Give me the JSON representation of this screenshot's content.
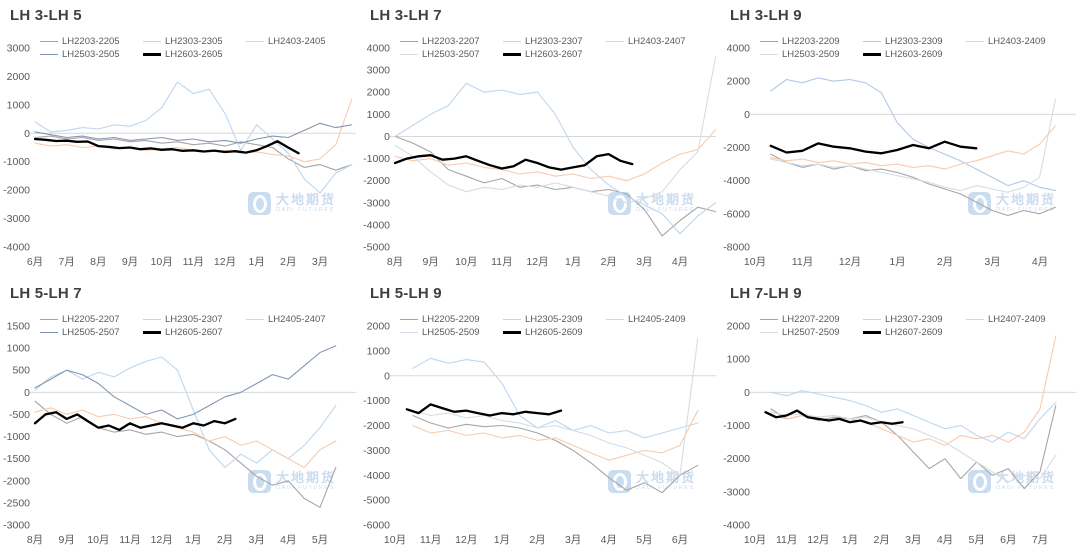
{
  "watermark": {
    "cn": "大地期货",
    "en": "DADI FUTURES"
  },
  "colors": {
    "gray22": "#a6a6a6",
    "blue23": "#bdd7ee",
    "peach24": "#f8cbad",
    "bluegray25": "#8497b0",
    "lightgray25": "#d6dce5",
    "black26": "#000000",
    "zeroline": "#d9d9d9"
  },
  "chart_data": [
    {
      "type": "line",
      "title": "LH 3-LH 5",
      "xlabel": "",
      "ylabel": "",
      "ylim": [
        -4000,
        3000
      ],
      "ystep": 1000,
      "grid": "zero-line-only",
      "legend_position": "top",
      "months": [
        "6月",
        "7月",
        "8月",
        "9月",
        "10月",
        "11月",
        "12月",
        "1月",
        "2月",
        "3月"
      ],
      "series": [
        {
          "name": "LH2203-2205",
          "color": "#a6a6a6",
          "width": 1.1,
          "start": 0,
          "step": 0.5,
          "values": [
            -150,
            -100,
            -200,
            -150,
            -250,
            -200,
            -300,
            -250,
            -350,
            -300,
            -400,
            -350,
            -450,
            -300,
            -400,
            -500,
            -900,
            -1200,
            -1100,
            -1300,
            -1100
          ]
        },
        {
          "name": "LH2303-2305",
          "color": "#bdd7ee",
          "width": 1.1,
          "start": 0,
          "step": 0.5,
          "values": [
            400,
            50,
            100,
            200,
            150,
            300,
            250,
            450,
            900,
            1800,
            1400,
            1550,
            700,
            -600,
            300,
            -200,
            -700,
            -1600,
            -2100,
            -1400,
            -1100
          ]
        },
        {
          "name": "LH2403-2405",
          "color": "#f8cbad",
          "width": 1.1,
          "start": 0,
          "step": 0.5,
          "values": [
            -350,
            -450,
            -400,
            -500,
            -450,
            -550,
            -500,
            -600,
            -550,
            -500,
            -600,
            -650,
            -600,
            -700,
            -650,
            -750,
            -800,
            -1000,
            -900,
            -400,
            1200
          ]
        },
        {
          "name": "LH2503-2505",
          "color": "#8497b0",
          "width": 1.1,
          "start": 0,
          "step": 0.5,
          "values": [
            50,
            -50,
            -150,
            -100,
            -200,
            -150,
            -250,
            -200,
            -150,
            -250,
            -200,
            -300,
            -250,
            -350,
            -200,
            -100,
            -150,
            100,
            350,
            200,
            300
          ]
        },
        {
          "name": "LH2603-2605",
          "color": "#000000",
          "width": 2.3,
          "start": 0,
          "step": 0.333,
          "values": [
            -200,
            -230,
            -270,
            -260,
            -300,
            -290,
            -450,
            -480,
            -520,
            -500,
            -560,
            -530,
            -580,
            -560,
            -620,
            -600,
            -640,
            -610,
            -660,
            -630,
            -680,
            -600,
            -450,
            -280,
            -500,
            -700
          ]
        }
      ]
    },
    {
      "type": "line",
      "title": "LH 3-LH 7",
      "xlabel": "",
      "ylabel": "",
      "ylim": [
        -5000,
        4000
      ],
      "ystep": 1000,
      "grid": "zero-line-only",
      "legend_position": "top",
      "months": [
        "8月",
        "9月",
        "10月",
        "11月",
        "12月",
        "1月",
        "2月",
        "3月",
        "4月"
      ],
      "series": [
        {
          "name": "LH2203-2207",
          "color": "#a6a6a6",
          "width": 1.1,
          "start": 0,
          "step": 0.5,
          "values": [
            0,
            -300,
            -700,
            -1500,
            -1800,
            -2100,
            -1900,
            -2300,
            -2200,
            -2400,
            -2300,
            -2500,
            -2400,
            -2600,
            -3300,
            -4500,
            -3800,
            -3200,
            -3400
          ]
        },
        {
          "name": "LH2303-2307",
          "color": "#bdd7ee",
          "width": 1.1,
          "start": 0,
          "step": 0.5,
          "values": [
            0,
            500,
            1000,
            1400,
            2400,
            2000,
            2100,
            1900,
            2000,
            1000,
            -500,
            -1500,
            -2200,
            -2700,
            -3100,
            -3500,
            -4400,
            -3600,
            -3000
          ]
        },
        {
          "name": "LH2403-2407",
          "color": "#f8cbad",
          "width": 1.1,
          "start": 0,
          "step": 0.5,
          "values": [
            -900,
            -1100,
            -1000,
            -1300,
            -1200,
            -1400,
            -1500,
            -1700,
            -1600,
            -1800,
            -1700,
            -1900,
            -1800,
            -2000,
            -1700,
            -1200,
            -800,
            -600,
            300
          ]
        },
        {
          "name": "LH2503-2507",
          "color": "#d6dce5",
          "width": 1.1,
          "start": 0,
          "step": 0.5,
          "values": [
            -400,
            -900,
            -1600,
            -2200,
            -2500,
            -2300,
            -2400,
            -2200,
            -2300,
            -2100,
            -2300,
            -2500,
            -2700,
            -3000,
            -2800,
            -2500,
            -1500,
            -700,
            3600
          ]
        },
        {
          "name": "LH2603-2607",
          "color": "#000000",
          "width": 2.3,
          "start": 0,
          "step": 0.333,
          "values": [
            -1200,
            -1000,
            -900,
            -850,
            -1050,
            -1000,
            -900,
            -1100,
            -1300,
            -1450,
            -1350,
            -1050,
            -1200,
            -1400,
            -1500,
            -1400,
            -1300,
            -900,
            -800,
            -1100,
            -1250
          ]
        }
      ]
    },
    {
      "type": "line",
      "title": "LH 3-LH 9",
      "xlabel": "",
      "ylabel": "",
      "ylim": [
        -8000,
        4000
      ],
      "ystep": 2000,
      "grid": "zero-line-only",
      "legend_position": "top",
      "months": [
        "10月",
        "11月",
        "12月",
        "1月",
        "2月",
        "3月",
        "4月"
      ],
      "series": [
        {
          "name": "LH2203-2209",
          "color": "#a6a6a6",
          "width": 1.1,
          "start": 0.33,
          "step": 0.333,
          "values": [
            -2400,
            -2900,
            -3200,
            -3000,
            -3300,
            -3100,
            -3400,
            -3300,
            -3500,
            -3800,
            -4200,
            -4500,
            -4800,
            -5300,
            -5800,
            -6100,
            -5800,
            -6000,
            -5600
          ]
        },
        {
          "name": "LH2303-2309",
          "color": "#b4c7e7",
          "width": 1.1,
          "start": 0.33,
          "step": 0.333,
          "values": [
            1400,
            2100,
            1900,
            2200,
            2000,
            2100,
            1900,
            1300,
            -500,
            -1500,
            -2000,
            -2400,
            -2800,
            -3300,
            -3800,
            -4300,
            -4000,
            -4400,
            -4600
          ]
        },
        {
          "name": "LH2403-2409",
          "color": "#f8cbad",
          "width": 1.1,
          "start": 0.33,
          "step": 0.333,
          "values": [
            -2600,
            -2800,
            -2700,
            -2900,
            -2800,
            -3000,
            -2900,
            -3100,
            -3000,
            -3200,
            -3100,
            -3300,
            -3000,
            -2800,
            -2500,
            -2200,
            -2400,
            -1800,
            -700
          ]
        },
        {
          "name": "LH2503-2509",
          "color": "#d6dce5",
          "width": 1.1,
          "start": 0.33,
          "step": 0.333,
          "values": [
            -2700,
            -2900,
            -3100,
            -3000,
            -3200,
            -3100,
            -3300,
            -3500,
            -3700,
            -3900,
            -4100,
            -4400,
            -4600,
            -4300,
            -4500,
            -4700,
            -4400,
            -3800,
            900
          ]
        },
        {
          "name": "LH2603-2609",
          "color": "#000000",
          "width": 2.3,
          "start": 0.33,
          "step": 0.333,
          "values": [
            -1900,
            -2300,
            -2200,
            -1750,
            -1950,
            -2050,
            -2250,
            -2350,
            -2150,
            -1850,
            -2050,
            -1650,
            -1950,
            -2050
          ]
        }
      ]
    },
    {
      "type": "line",
      "title": "LH 5-LH 7",
      "xlabel": "",
      "ylabel": "",
      "ylim": [
        -3000,
        1500
      ],
      "ystep": 500,
      "grid": "zero-line-only",
      "legend_position": "top",
      "months": [
        "8月",
        "9月",
        "10月",
        "11月",
        "12月",
        "1月",
        "2月",
        "3月",
        "4月",
        "5月"
      ],
      "series": [
        {
          "name": "LH2205-2207",
          "color": "#a6a6a6",
          "width": 1.1,
          "start": 0,
          "step": 0.5,
          "values": [
            -200,
            -500,
            -700,
            -550,
            -800,
            -900,
            -850,
            -950,
            -900,
            -1000,
            -950,
            -1100,
            -1300,
            -1600,
            -1900,
            -2100,
            -2000,
            -2400,
            -2600,
            -1700
          ]
        },
        {
          "name": "LH2305-2307",
          "color": "#bdd7ee",
          "width": 1.1,
          "start": 0,
          "step": 0.5,
          "values": [
            50,
            350,
            500,
            300,
            450,
            350,
            550,
            700,
            800,
            500,
            -400,
            -1300,
            -1700,
            -1400,
            -1600,
            -1300,
            -1500,
            -1200,
            -800,
            -300
          ]
        },
        {
          "name": "LH2405-2407",
          "color": "#f8cbad",
          "width": 1.1,
          "start": 0,
          "step": 0.5,
          "values": [
            -450,
            -350,
            -500,
            -400,
            -550,
            -500,
            -600,
            -550,
            -700,
            -800,
            -900,
            -1100,
            -1000,
            -1200,
            -1100,
            -1300,
            -1500,
            -1700,
            -1300,
            -1100
          ]
        },
        {
          "name": "LH2505-2507",
          "color": "#8497b0",
          "width": 1.1,
          "start": 0,
          "step": 0.5,
          "values": [
            100,
            300,
            500,
            400,
            200,
            -100,
            -300,
            -500,
            -400,
            -600,
            -500,
            -300,
            -100,
            0,
            200,
            400,
            300,
            600,
            900,
            1050
          ]
        },
        {
          "name": "LH2605-2607",
          "color": "#000000",
          "width": 2.3,
          "start": 0,
          "step": 0.333,
          "values": [
            -700,
            -500,
            -450,
            -600,
            -500,
            -650,
            -800,
            -750,
            -850,
            -700,
            -800,
            -750,
            -700,
            -750,
            -800,
            -700,
            -750,
            -650,
            -700,
            -600
          ]
        }
      ]
    },
    {
      "type": "line",
      "title": "LH 5-LH 9",
      "xlabel": "",
      "ylabel": "",
      "ylim": [
        -6000,
        2000
      ],
      "ystep": 1000,
      "grid": "zero-line-only",
      "legend_position": "top",
      "months": [
        "10月",
        "11月",
        "12月",
        "1月",
        "2月",
        "3月",
        "4月",
        "5月",
        "6月"
      ],
      "series": [
        {
          "name": "LH2205-2209",
          "color": "#a6a6a6",
          "width": 1.1,
          "start": 0.5,
          "step": 0.5,
          "values": [
            -1600,
            -1900,
            -2100,
            -1950,
            -2050,
            -2000,
            -2100,
            -2300,
            -2600,
            -3000,
            -3500,
            -4100,
            -4600,
            -4300,
            -4700,
            -4000,
            -3600
          ]
        },
        {
          "name": "LH2305-2309",
          "color": "#bdd7ee",
          "width": 1.1,
          "start": 0.5,
          "step": 0.5,
          "values": [
            300,
            700,
            500,
            650,
            550,
            -300,
            -1600,
            -2100,
            -1800,
            -2200,
            -2000,
            -2300,
            -2200,
            -2500,
            -2300,
            -2100,
            -1900
          ]
        },
        {
          "name": "LH2405-2409",
          "color": "#f8cbad",
          "width": 1.1,
          "start": 0.5,
          "step": 0.5,
          "values": [
            -2000,
            -2300,
            -2200,
            -2400,
            -2300,
            -2500,
            -2400,
            -2600,
            -2500,
            -2800,
            -3100,
            -3400,
            -3200,
            -3000,
            -3100,
            -2800,
            -1400
          ]
        },
        {
          "name": "LH2505-2509",
          "color": "#d6dce5",
          "width": 1.1,
          "start": 0.5,
          "step": 0.5,
          "values": [
            -1400,
            -1600,
            -1500,
            -1700,
            -1600,
            -1800,
            -1900,
            -2100,
            -2000,
            -2200,
            -2400,
            -2700,
            -2900,
            -3200,
            -3500,
            -4000,
            1500
          ]
        },
        {
          "name": "LH2605-2609",
          "color": "#000000",
          "width": 2.3,
          "start": 0.33,
          "step": 0.333,
          "values": [
            -1350,
            -1500,
            -1150,
            -1300,
            -1450,
            -1400,
            -1500,
            -1600,
            -1500,
            -1550,
            -1450,
            -1500,
            -1550,
            -1400
          ]
        }
      ]
    },
    {
      "type": "line",
      "title": "LH 7-LH 9",
      "xlabel": "",
      "ylabel": "",
      "ylim": [
        -4000,
        2000
      ],
      "ystep": 1000,
      "grid": "zero-line-only",
      "legend_position": "top",
      "months": [
        "10月",
        "11月",
        "12月",
        "1月",
        "2月",
        "3月",
        "4月",
        "5月",
        "6月",
        "7月"
      ],
      "series": [
        {
          "name": "LH2207-2209",
          "color": "#a6a6a6",
          "width": 1.1,
          "start": 0.5,
          "step": 0.5,
          "values": [
            -500,
            -800,
            -700,
            -850,
            -750,
            -800,
            -700,
            -900,
            -1300,
            -1800,
            -2300,
            -2000,
            -2600,
            -2100,
            -2500,
            -2300,
            -2900,
            -2400,
            -400
          ]
        },
        {
          "name": "LH2307-2309",
          "color": "#bdd7ee",
          "width": 1.1,
          "start": 0.5,
          "step": 0.5,
          "values": [
            0,
            -100,
            50,
            -50,
            -150,
            -250,
            -400,
            -600,
            -500,
            -700,
            -900,
            -1100,
            -1000,
            -1300,
            -1500,
            -1200,
            -1400,
            -800,
            -300
          ]
        },
        {
          "name": "LH2407-2409",
          "color": "#f8cbad",
          "width": 1.1,
          "start": 0.5,
          "step": 0.5,
          "values": [
            -700,
            -800,
            -700,
            -750,
            -700,
            -800,
            -900,
            -1100,
            -1300,
            -1500,
            -1400,
            -1600,
            -1300,
            -1400,
            -1300,
            -1500,
            -1200,
            -500,
            1700
          ]
        },
        {
          "name": "LH2507-2509",
          "color": "#d6dce5",
          "width": 1.1,
          "start": 0.5,
          "step": 0.5,
          "values": [
            -600,
            -700,
            -650,
            -750,
            -700,
            -800,
            -750,
            -900,
            -1000,
            -1100,
            -1300,
            -1500,
            -1800,
            -2100,
            -2400,
            -2700,
            -2500,
            -2600,
            -1900
          ]
        },
        {
          "name": "LH2607-2609",
          "color": "#000000",
          "width": 2.3,
          "start": 0.33,
          "step": 0.333,
          "values": [
            -600,
            -750,
            -700,
            -550,
            -750,
            -800,
            -850,
            -800,
            -900,
            -850,
            -950,
            -900,
            -950,
            -900
          ]
        }
      ]
    }
  ]
}
